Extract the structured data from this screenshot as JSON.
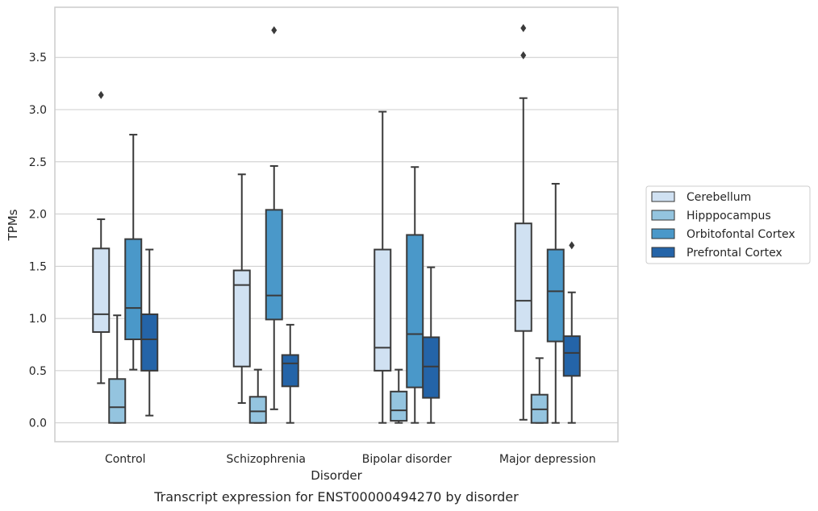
{
  "chart_data": {
    "type": "box",
    "caption": "Transcript expression for ENST00000494270 by disorder",
    "xlabel": "Disorder",
    "ylabel": "TPMs",
    "ylim": [
      -0.18,
      3.98
    ],
    "yticks": [
      "0.0",
      "0.5",
      "1.0",
      "1.5",
      "2.0",
      "2.5",
      "3.0",
      "3.5"
    ],
    "grid": "horizontal",
    "legend_position": "right",
    "categories": [
      "Control",
      "Schizophrenia",
      "Bipolar disorder",
      "Major depression"
    ],
    "series": [
      {
        "name": "Cerebellum",
        "color": "#d0e1f2",
        "boxes": [
          {
            "whislo": 0.38,
            "q1": 0.87,
            "med": 1.04,
            "q3": 1.67,
            "whishi": 1.95,
            "fliers": [
              3.14
            ]
          },
          {
            "whislo": 0.19,
            "q1": 0.54,
            "med": 1.32,
            "q3": 1.46,
            "whishi": 2.38,
            "fliers": []
          },
          {
            "whislo": 0.0,
            "q1": 0.5,
            "med": 0.72,
            "q3": 1.66,
            "whishi": 2.98,
            "fliers": []
          },
          {
            "whislo": 0.03,
            "q1": 0.88,
            "med": 1.17,
            "q3": 1.91,
            "whishi": 3.11,
            "fliers": [
              3.52,
              3.78
            ]
          }
        ]
      },
      {
        "name": "Hipppocampus",
        "color": "#94c4df",
        "boxes": [
          {
            "whislo": 0.0,
            "q1": 0.0,
            "med": 0.15,
            "q3": 0.42,
            "whishi": 1.03,
            "fliers": []
          },
          {
            "whislo": 0.0,
            "q1": 0.0,
            "med": 0.11,
            "q3": 0.25,
            "whishi": 0.51,
            "fliers": []
          },
          {
            "whislo": 0.0,
            "q1": 0.02,
            "med": 0.12,
            "q3": 0.3,
            "whishi": 0.51,
            "fliers": []
          },
          {
            "whislo": 0.0,
            "q1": 0.0,
            "med": 0.13,
            "q3": 0.27,
            "whishi": 0.62,
            "fliers": []
          }
        ]
      },
      {
        "name": "Orbitofontal Cortex",
        "color": "#4a98c9",
        "boxes": [
          {
            "whislo": 0.51,
            "q1": 0.8,
            "med": 1.1,
            "q3": 1.76,
            "whishi": 2.76,
            "fliers": []
          },
          {
            "whislo": 0.13,
            "q1": 0.99,
            "med": 1.22,
            "q3": 2.04,
            "whishi": 2.46,
            "fliers": [
              3.76
            ]
          },
          {
            "whislo": 0.0,
            "q1": 0.34,
            "med": 0.85,
            "q3": 1.8,
            "whishi": 2.45,
            "fliers": []
          },
          {
            "whislo": 0.0,
            "q1": 0.78,
            "med": 1.26,
            "q3": 1.66,
            "whishi": 2.29,
            "fliers": []
          }
        ]
      },
      {
        "name": "Prefrontal Cortex",
        "color": "#2464a8",
        "boxes": [
          {
            "whislo": 0.07,
            "q1": 0.5,
            "med": 0.8,
            "q3": 1.04,
            "whishi": 1.66,
            "fliers": []
          },
          {
            "whislo": 0.0,
            "q1": 0.35,
            "med": 0.57,
            "q3": 0.65,
            "whishi": 0.94,
            "fliers": []
          },
          {
            "whislo": 0.0,
            "q1": 0.24,
            "med": 0.54,
            "q3": 0.82,
            "whishi": 1.49,
            "fliers": []
          },
          {
            "whislo": 0.0,
            "q1": 0.45,
            "med": 0.67,
            "q3": 0.83,
            "whishi": 1.25,
            "fliers": [
              1.7
            ]
          }
        ]
      }
    ]
  }
}
